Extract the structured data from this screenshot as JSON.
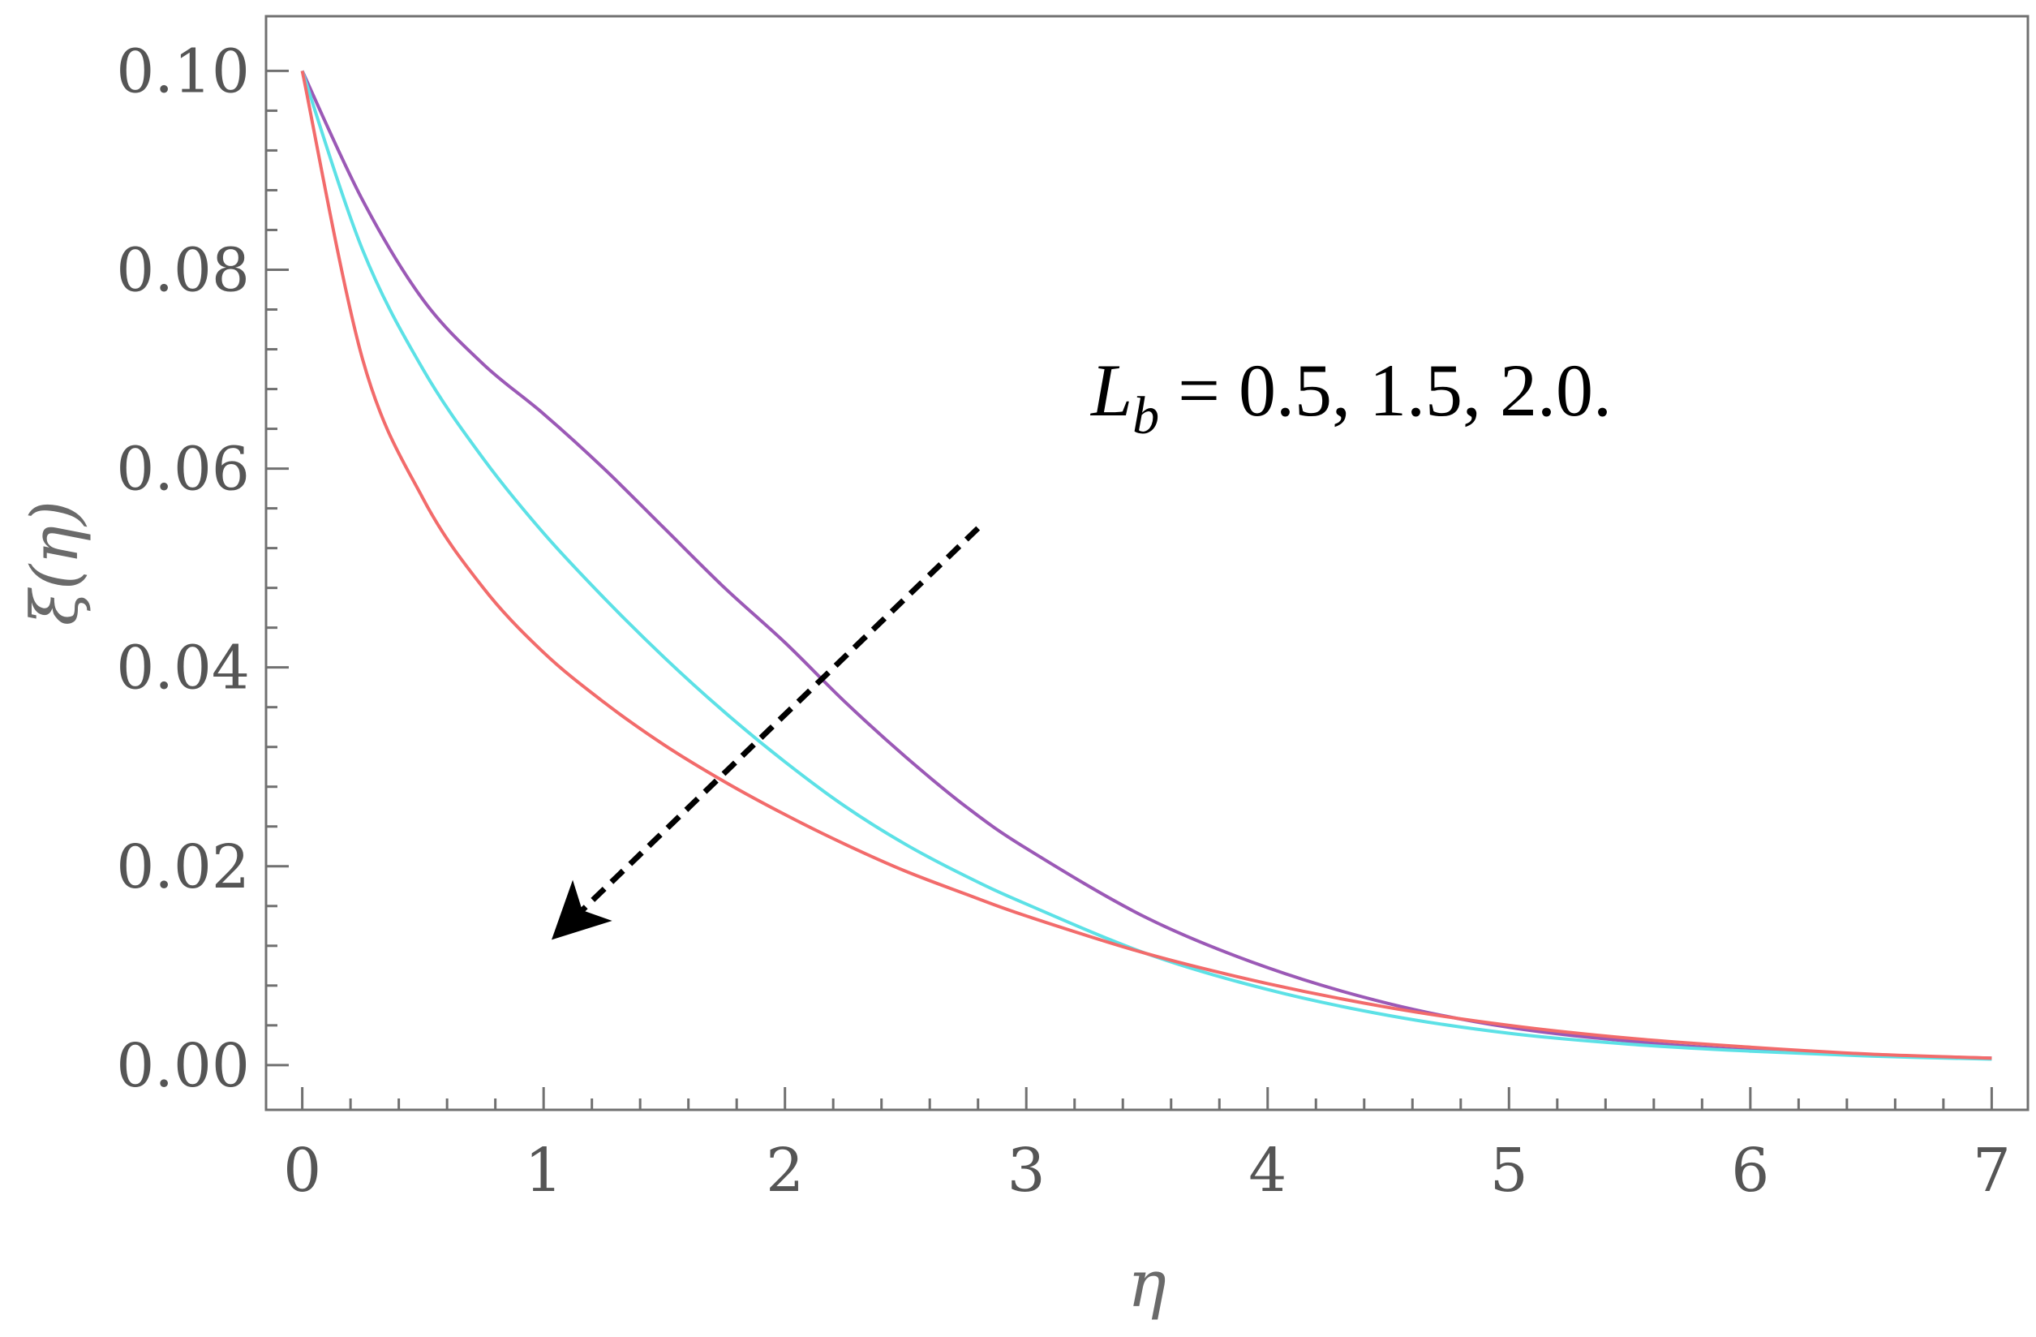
{
  "chart_data": {
    "type": "line",
    "title": "",
    "xlabel": "η",
    "ylabel": "ξ(η)",
    "xlim": [
      -0.15,
      7.15
    ],
    "ylim": [
      -0.0045,
      0.1055
    ],
    "x_ticks": [
      0,
      1,
      2,
      3,
      4,
      5,
      6,
      7
    ],
    "x_tick_labels": [
      "0",
      "1",
      "2",
      "3",
      "4",
      "5",
      "6",
      "7"
    ],
    "y_ticks": [
      0.0,
      0.02,
      0.04,
      0.06,
      0.08,
      0.1
    ],
    "y_tick_labels": [
      "0.00",
      "0.02",
      "0.04",
      "0.06",
      "0.08",
      "0.10"
    ],
    "grid": false,
    "legend": "none",
    "annotation": {
      "symbol": "L",
      "subscript": "b",
      "text": " = 0.5, 1.5, 2.0.",
      "arrow_from": [
        2.8,
        0.054
      ],
      "arrow_to": [
        1.05,
        0.013
      ]
    },
    "series": [
      {
        "color": "#9b59b6",
        "x": [
          0,
          0.25,
          0.5,
          0.75,
          1.0,
          1.25,
          1.5,
          1.75,
          2.0,
          2.25,
          2.5,
          2.75,
          3.0,
          3.5,
          4.0,
          4.5,
          5.0,
          5.5,
          6.0,
          6.5,
          7.0
        ],
        "y": [
          0.1,
          0.087,
          0.077,
          0.0705,
          0.0655,
          0.06,
          0.054,
          0.048,
          0.0425,
          0.0365,
          0.031,
          0.026,
          0.0218,
          0.0148,
          0.0098,
          0.0062,
          0.0038,
          0.0024,
          0.0015,
          0.001,
          0.0007
        ]
      },
      {
        "color": "#5ce1e6",
        "x": [
          0,
          0.25,
          0.5,
          0.75,
          1.0,
          1.25,
          1.5,
          1.75,
          2.0,
          2.25,
          2.5,
          2.75,
          3.0,
          3.5,
          4.0,
          4.5,
          5.0,
          5.5,
          6.0,
          6.5,
          7.0
        ],
        "y": [
          0.1,
          0.082,
          0.07,
          0.061,
          0.0535,
          0.047,
          0.041,
          0.0355,
          0.0305,
          0.026,
          0.0222,
          0.019,
          0.0162,
          0.0112,
          0.0076,
          0.005,
          0.0032,
          0.0021,
          0.0014,
          0.0009,
          0.0006
        ]
      },
      {
        "color": "#f26b6b",
        "x": [
          0,
          0.25,
          0.5,
          0.75,
          1.0,
          1.25,
          1.5,
          1.75,
          2.0,
          2.25,
          2.5,
          2.75,
          3.0,
          3.5,
          4.0,
          4.5,
          5.0,
          5.5,
          6.0,
          6.5,
          7.0
        ],
        "y": [
          0.1,
          0.071,
          0.057,
          0.048,
          0.0415,
          0.0365,
          0.0322,
          0.0285,
          0.0252,
          0.0222,
          0.0195,
          0.0172,
          0.015,
          0.0112,
          0.0082,
          0.0058,
          0.004,
          0.0027,
          0.0018,
          0.0011,
          0.0007
        ]
      }
    ]
  }
}
